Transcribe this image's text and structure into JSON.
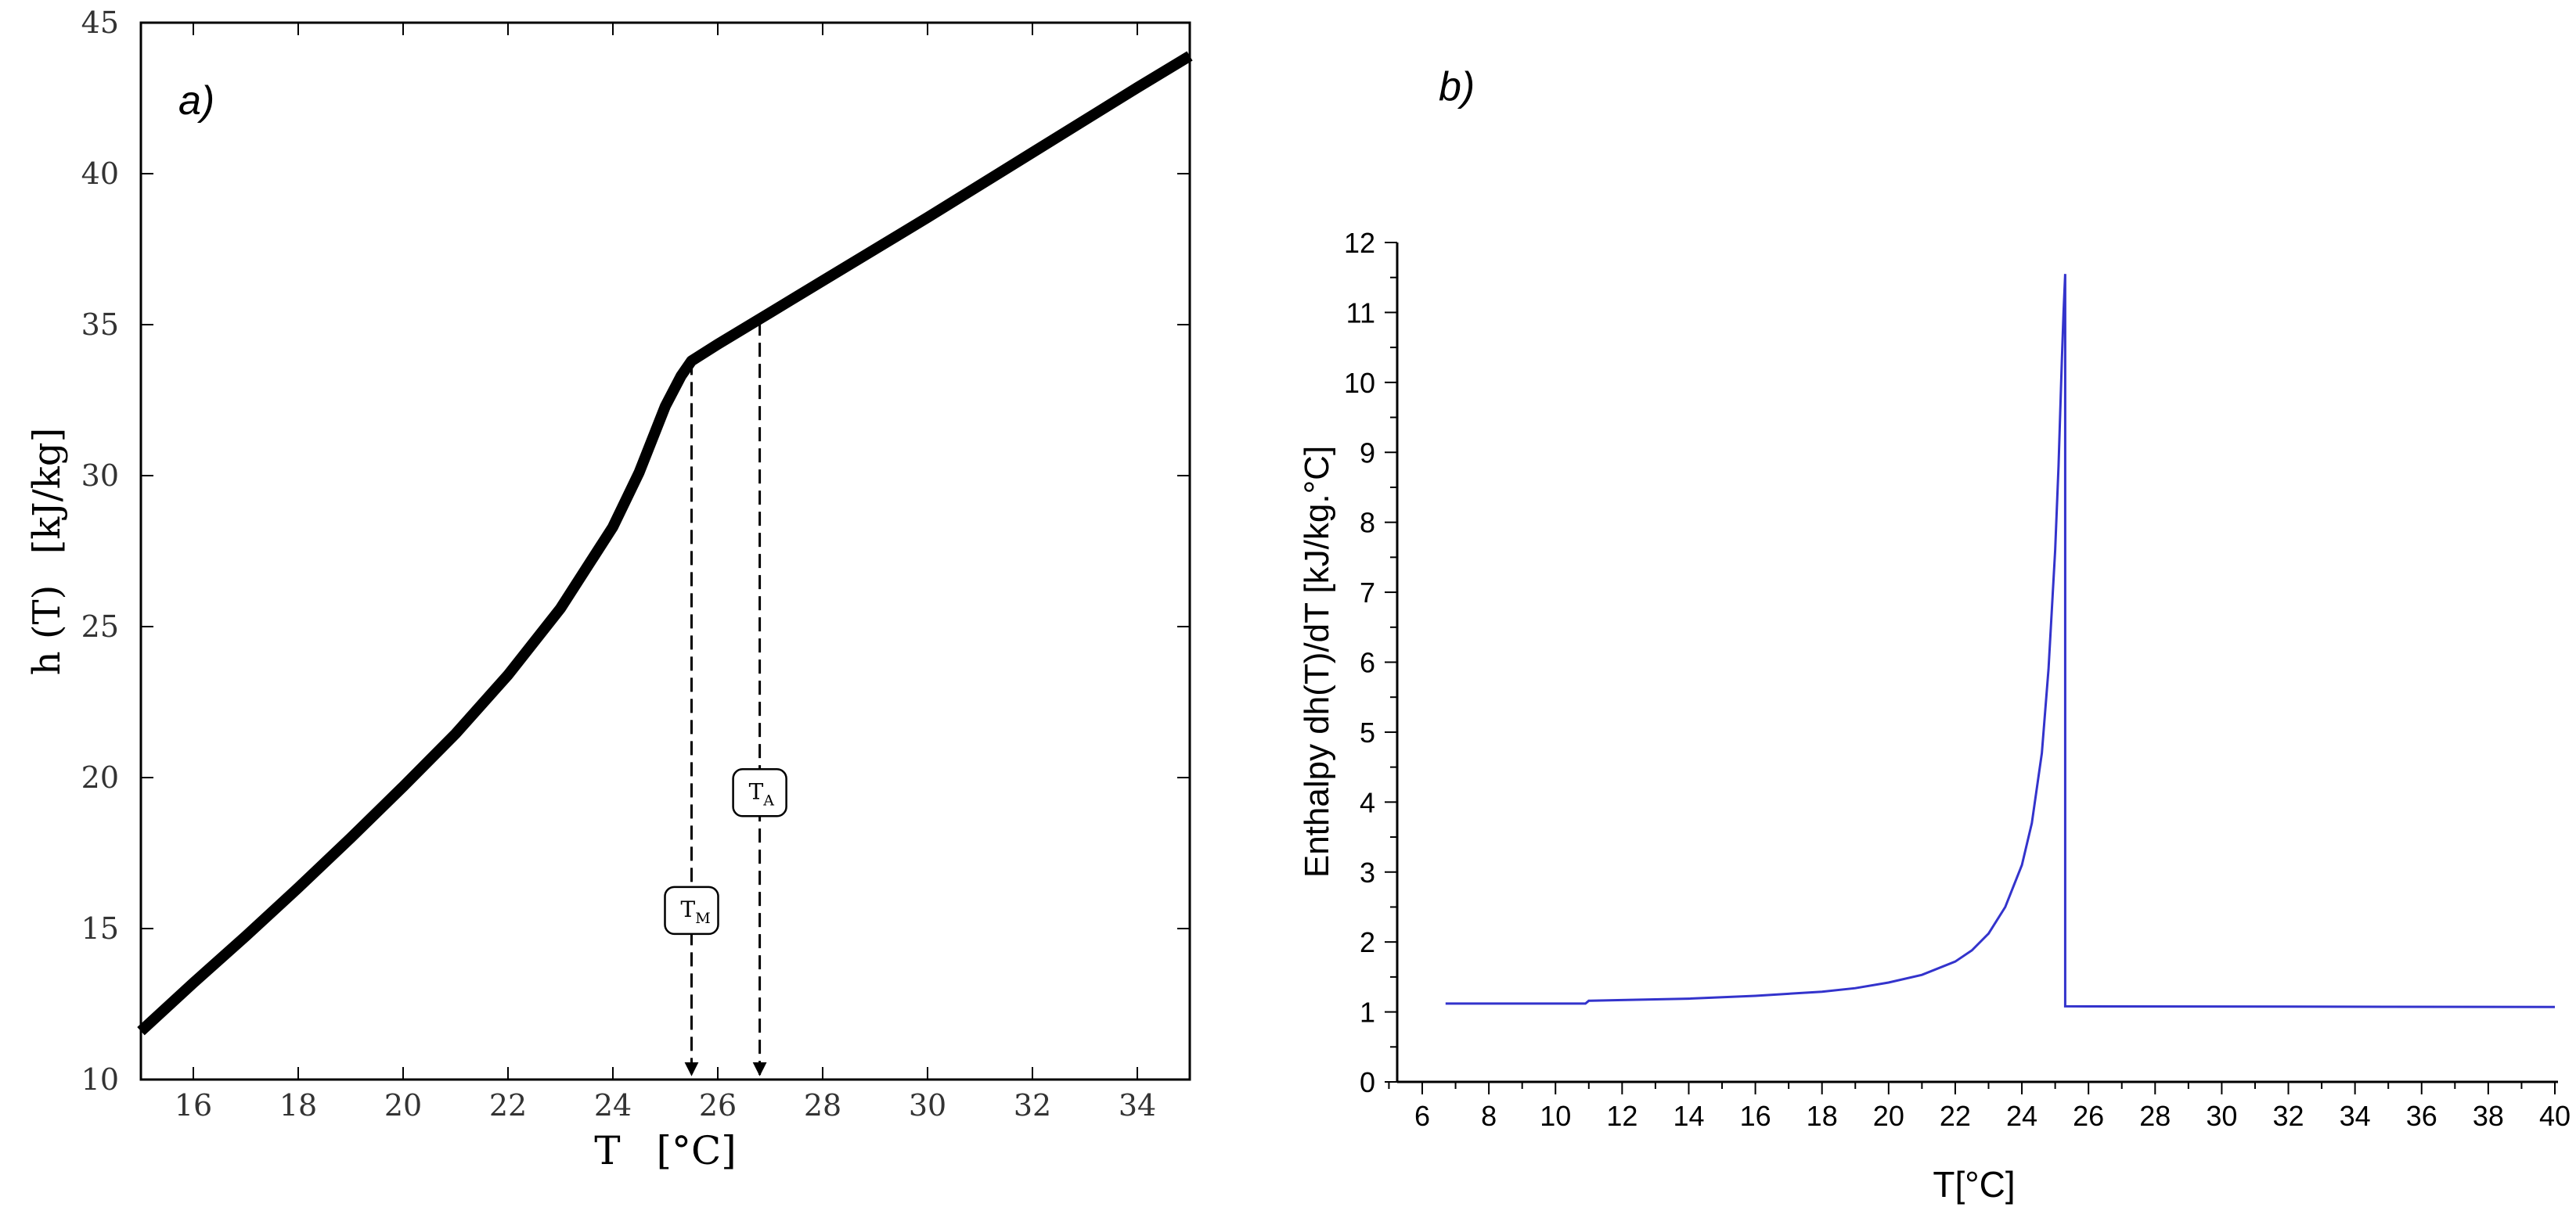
{
  "chart_data": [
    {
      "type": "line",
      "panel_label": "a)",
      "xlabel": "T [°C]",
      "xlabel_T": "T",
      "xlabel_unit": "[°C]",
      "ylabel": "h (T) [kJ/kg]",
      "ylabel_h": "h (T)",
      "ylabel_unit": "[kJ/kg]",
      "xlim": [
        15,
        35
      ],
      "ylim": [
        10,
        45
      ],
      "x_ticks": [
        16,
        18,
        20,
        22,
        24,
        26,
        28,
        30,
        32,
        34
      ],
      "y_ticks": [
        10,
        15,
        20,
        25,
        30,
        35,
        40,
        45
      ],
      "series": [
        {
          "name": "h(T)",
          "color": "#000000",
          "x": [
            15,
            16,
            17,
            18,
            19,
            20,
            21,
            22,
            23,
            24,
            24.5,
            25,
            25.3,
            25.5,
            26,
            27,
            28,
            30,
            32,
            34,
            35
          ],
          "y": [
            11.6,
            13.2,
            14.75,
            16.35,
            18.0,
            19.7,
            21.45,
            23.4,
            25.6,
            28.3,
            30.1,
            32.3,
            33.3,
            33.8,
            34.35,
            35.4,
            36.45,
            38.55,
            40.7,
            42.85,
            43.9
          ]
        }
      ],
      "annotations": [
        {
          "label": "T",
          "subscript": "M",
          "x": 25.5,
          "y_top": 33.8,
          "label_y": 15.6
        },
        {
          "label": "T",
          "subscript": "A",
          "x": 26.8,
          "y_top": 35.1,
          "label_y": 19.5
        }
      ]
    },
    {
      "type": "line",
      "panel_label": "b)",
      "xlabel": "T[°C]",
      "ylabel": "Enthalpy dh(T)/dT [kJ/kg.°C]",
      "xlim": [
        4.5,
        40
      ],
      "ylim": [
        0,
        12
      ],
      "x_ticks": [
        6,
        8,
        10,
        12,
        14,
        16,
        18,
        20,
        22,
        24,
        26,
        28,
        30,
        32,
        34,
        36,
        38,
        40
      ],
      "y_ticks": [
        0,
        1,
        2,
        3,
        4,
        5,
        6,
        7,
        8,
        9,
        10,
        11,
        12
      ],
      "series": [
        {
          "name": "dh/dT",
          "color": "#3333cc",
          "x": [
            6.7,
            10.9,
            11.0,
            12,
            14,
            16,
            18,
            19,
            20,
            21,
            22,
            22.5,
            23,
            23.5,
            24,
            24.3,
            24.6,
            24.8,
            25.0,
            25.1,
            25.2,
            25.25,
            25.3,
            25.3,
            40
          ],
          "y": [
            1.12,
            1.12,
            1.16,
            1.17,
            1.19,
            1.23,
            1.29,
            1.34,
            1.42,
            1.53,
            1.72,
            1.88,
            2.12,
            2.5,
            3.1,
            3.7,
            4.7,
            5.9,
            7.6,
            8.8,
            10.3,
            11.0,
            11.55,
            1.08,
            1.07
          ]
        }
      ]
    }
  ]
}
